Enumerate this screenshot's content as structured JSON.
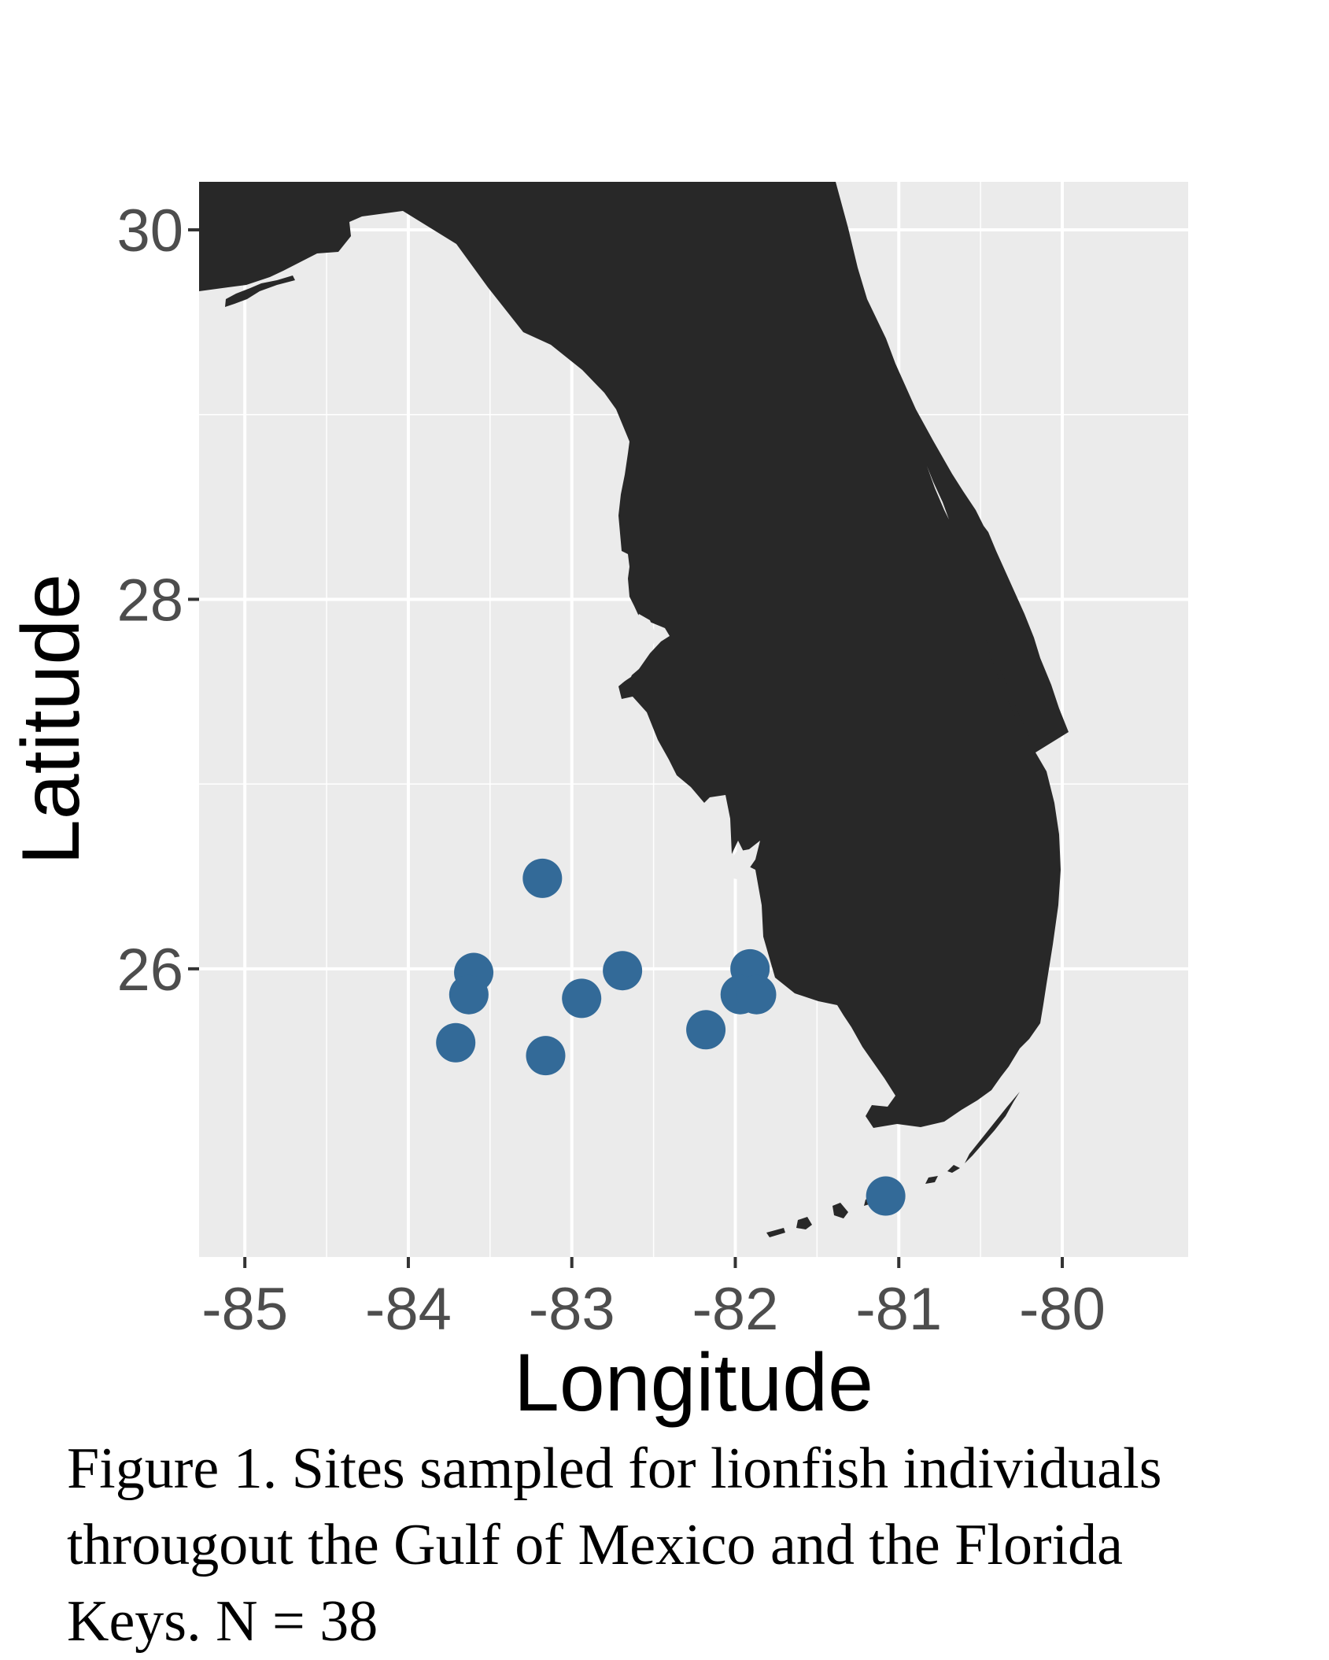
{
  "chart_data": {
    "type": "scatter",
    "xlabel": "Longitude",
    "ylabel": "Latitude",
    "xlim": [
      -85.28,
      -79.23
    ],
    "ylim": [
      24.44,
      30.26
    ],
    "x_ticks": [
      -85,
      -84,
      -83,
      -82,
      -81,
      -80
    ],
    "y_ticks": [
      26,
      28,
      30
    ],
    "grid": true,
    "background_color": "#ebebeb",
    "land_color": "#282828",
    "point_color": "#336a98",
    "series": [
      {
        "x": [
          -83.18,
          -83.6,
          -83.63,
          -83.71,
          -83.16,
          -82.94,
          -82.69,
          -82.18,
          -81.91,
          -81.97,
          -81.87,
          -81.08
        ],
        "y": [
          26.49,
          25.98,
          25.86,
          25.6,
          25.53,
          25.84,
          25.99,
          25.67,
          26.0,
          25.86,
          25.86,
          24.77
        ]
      }
    ]
  },
  "caption": "Figure 1. Sites sampled for lionfish individuals\nthrougout the Gulf of Mexico and the Florida\nKeys. N = 38"
}
